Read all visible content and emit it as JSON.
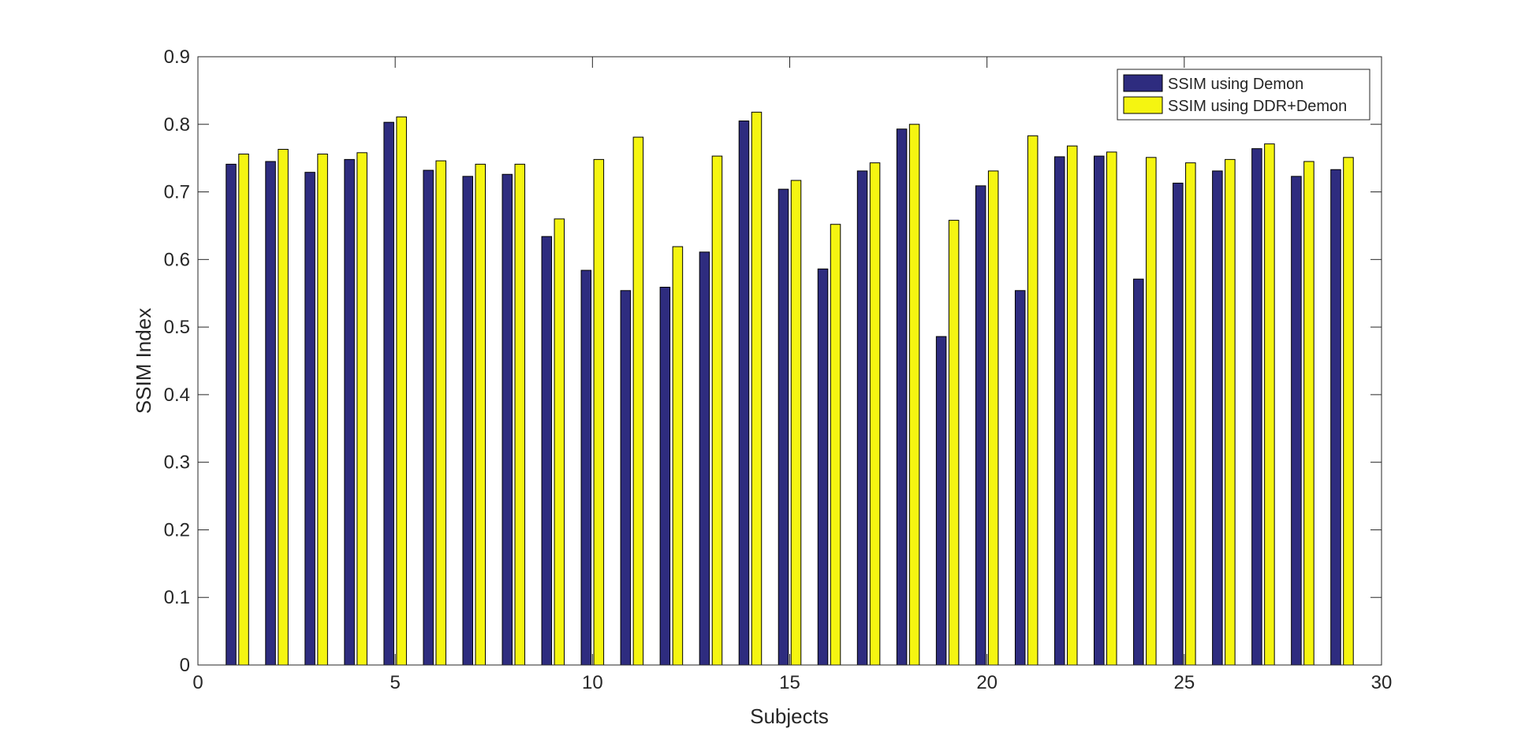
{
  "chart_data": {
    "type": "bar",
    "xlabel": "Subjects",
    "ylabel": "SSIM Index",
    "xlim": [
      0,
      30
    ],
    "ylim": [
      0,
      0.9
    ],
    "xticks": [
      "0",
      "5",
      "10",
      "15",
      "20",
      "25",
      "30"
    ],
    "yticks": [
      "0",
      "0.1",
      "0.2",
      "0.3",
      "0.4",
      "0.5",
      "0.6",
      "0.7",
      "0.8",
      "0.9"
    ],
    "grid": false,
    "legend_position": "top-right",
    "x": [
      1,
      2,
      3,
      4,
      5,
      6,
      7,
      8,
      9,
      10,
      11,
      12,
      13,
      14,
      15,
      16,
      17,
      18,
      19,
      20,
      21,
      22,
      23,
      24,
      25,
      26,
      27,
      28,
      29
    ],
    "series": [
      {
        "name": "SSIM using Demon",
        "color": "#2e2c7f",
        "values": [
          0.741,
          0.745,
          0.729,
          0.748,
          0.803,
          0.732,
          0.723,
          0.726,
          0.634,
          0.584,
          0.554,
          0.559,
          0.611,
          0.805,
          0.704,
          0.586,
          0.731,
          0.793,
          0.486,
          0.709,
          0.554,
          0.752,
          0.753,
          0.571,
          0.713,
          0.731,
          0.764,
          0.723,
          0.733
        ]
      },
      {
        "name": "SSIM using DDR+Demon",
        "color": "#f5f511",
        "values": [
          0.756,
          0.763,
          0.756,
          0.758,
          0.811,
          0.746,
          0.741,
          0.741,
          0.66,
          0.748,
          0.781,
          0.619,
          0.753,
          0.818,
          0.717,
          0.652,
          0.743,
          0.8,
          0.658,
          0.731,
          0.783,
          0.768,
          0.759,
          0.751,
          0.743,
          0.748,
          0.771,
          0.745,
          0.751
        ]
      }
    ]
  }
}
